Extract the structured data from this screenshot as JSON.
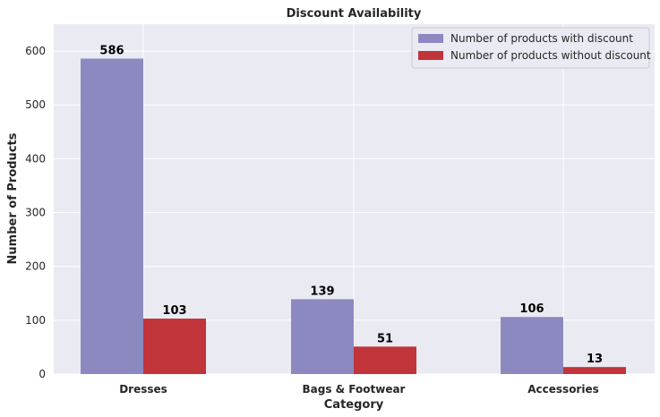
{
  "chart_data": {
    "type": "bar",
    "title": "Discount Availability",
    "xlabel": "Category",
    "ylabel": "Number of Products",
    "categories": [
      "Dresses",
      "Bags & Footwear",
      "Accessories"
    ],
    "series": [
      {
        "name": "Number of products with discount",
        "values": [
          586,
          139,
          106
        ],
        "color": "#8c89c0"
      },
      {
        "name": "Number of products without discount",
        "values": [
          103,
          51,
          13
        ],
        "color": "#c1343a"
      }
    ],
    "ylim": [
      0,
      650
    ],
    "yticks": [
      0,
      100,
      200,
      300,
      400,
      500,
      600
    ],
    "grid": true,
    "legend_position": "top-right",
    "background_color": "#eaeaf2",
    "grid_color": "#ffffff"
  }
}
